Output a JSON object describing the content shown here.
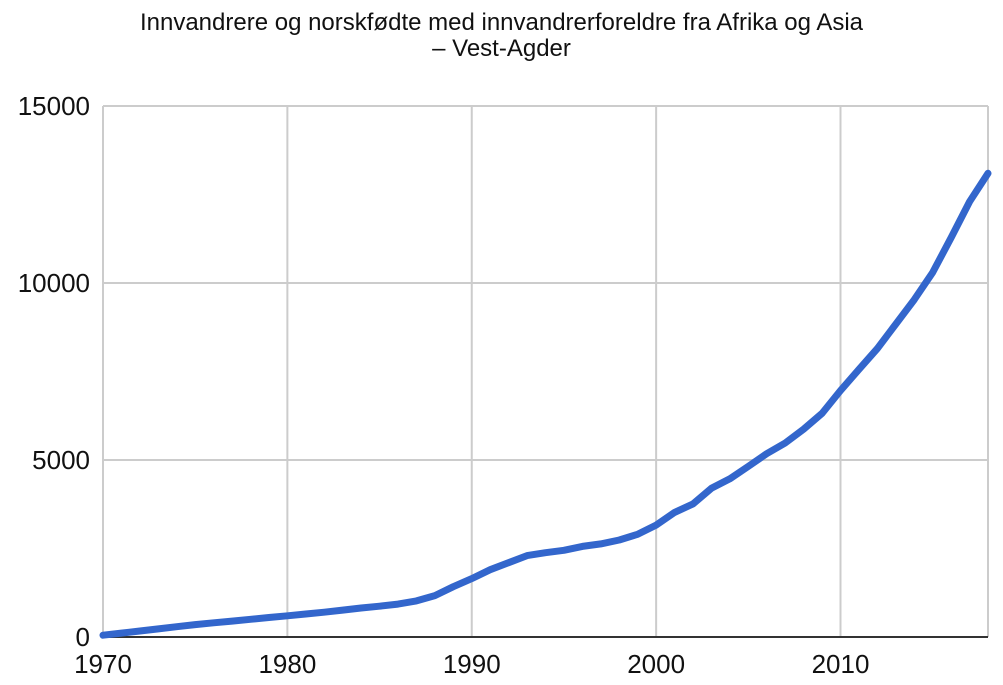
{
  "chart_data": {
    "type": "line",
    "title_line1": "Innvandrere og norskfødte med innvandrerforeldre fra Afrika og Asia",
    "title_line2": "– Vest-Agder",
    "xlabel": "",
    "ylabel": "",
    "xlim": [
      1970,
      2018
    ],
    "ylim": [
      0,
      15000
    ],
    "xticks": [
      1970,
      1980,
      1990,
      2000,
      2010
    ],
    "yticks": [
      0,
      5000,
      10000,
      15000
    ],
    "grid": true,
    "legend": "none",
    "series": [
      {
        "color": "#3366cc",
        "x": [
          1970,
          1971,
          1972,
          1973,
          1974,
          1975,
          1976,
          1977,
          1978,
          1979,
          1980,
          1981,
          1982,
          1983,
          1984,
          1985,
          1986,
          1987,
          1988,
          1989,
          1990,
          1991,
          1992,
          1993,
          1994,
          1995,
          1996,
          1997,
          1998,
          1999,
          2000,
          2001,
          2002,
          2003,
          2004,
          2005,
          2006,
          2007,
          2008,
          2009,
          2010,
          2011,
          2012,
          2013,
          2014,
          2015,
          2016,
          2017,
          2018
        ],
        "y": [
          50,
          110,
          170,
          230,
          290,
          350,
          400,
          450,
          500,
          550,
          600,
          650,
          700,
          760,
          820,
          870,
          930,
          1020,
          1170,
          1420,
          1650,
          1900,
          2100,
          2300,
          2380,
          2450,
          2560,
          2630,
          2740,
          2900,
          3160,
          3520,
          3760,
          4200,
          4470,
          4820,
          5180,
          5480,
          5870,
          6320,
          6960,
          7560,
          8150,
          8840,
          9530,
          10300,
          11280,
          12300,
          13100
        ]
      }
    ]
  }
}
